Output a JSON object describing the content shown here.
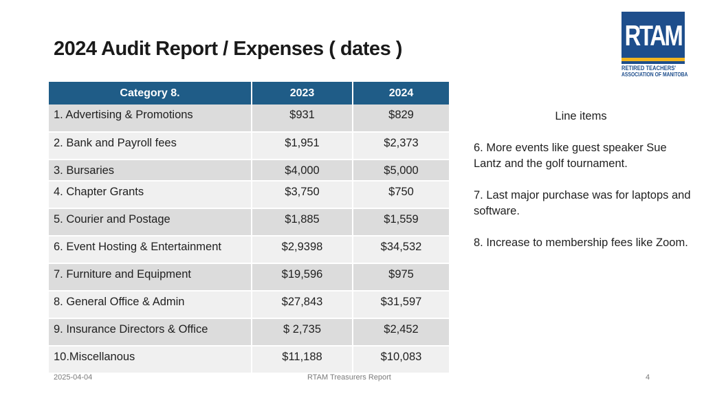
{
  "title": "2024 Audit Report / Expenses ( dates )",
  "logo": {
    "letters": "RTAM",
    "line1": "RETIRED TEACHERS'",
    "line2": "ASSOCIATION OF MANITOBA"
  },
  "table": {
    "headers": [
      "Category 8.",
      "2023",
      "2024"
    ],
    "rows": [
      {
        "category": "1. Advertising & Promotions",
        "y2023": "$931",
        "y2024": "$829"
      },
      {
        "category": "2. Bank and Payroll fees",
        "y2023": "$1,951",
        "y2024": "$2,373"
      },
      {
        "category": "3. Bursaries",
        "y2023": "$4,000",
        "y2024": "$5,000"
      },
      {
        "category": "4. Chapter Grants",
        "y2023": "$3,750",
        "y2024": "$750"
      },
      {
        "category": "5. Courier and Postage",
        "y2023": "$1,885",
        "y2024": "$1,559"
      },
      {
        "category": "6. Event Hosting & Entertainment",
        "y2023": "$2,9398",
        "y2024": "$34,532"
      },
      {
        "category": "7. Furniture and Equipment",
        "y2023": "$19,596",
        "y2024": "$975"
      },
      {
        "category": "8. General Office & Admin",
        "y2023": "$27,843",
        "y2024": "$31,597"
      },
      {
        "category": "9. Insurance Directors & Office",
        "y2023": "$ 2,735",
        "y2024": "$2,452"
      },
      {
        "category": "10.Miscellanous",
        "y2023": "$11,188",
        "y2024": "$10,083"
      }
    ]
  },
  "side": {
    "title": "Line items",
    "notes": [
      "6. More events like guest speaker Sue Lantz and the golf tournament.",
      "7. Last major purchase was for laptops and software.",
      "8. Increase to membership fees like Zoom."
    ]
  },
  "footer": {
    "date": "2025-04-04",
    "center": "RTAM Treasurers Report",
    "page": "4"
  },
  "colors": {
    "header_bg": "#1f5c87",
    "row_odd": "#dcdcdc",
    "row_even": "#f0f0f0",
    "logo_blue": "#1e4e8c",
    "logo_gold": "#f2b51e"
  }
}
